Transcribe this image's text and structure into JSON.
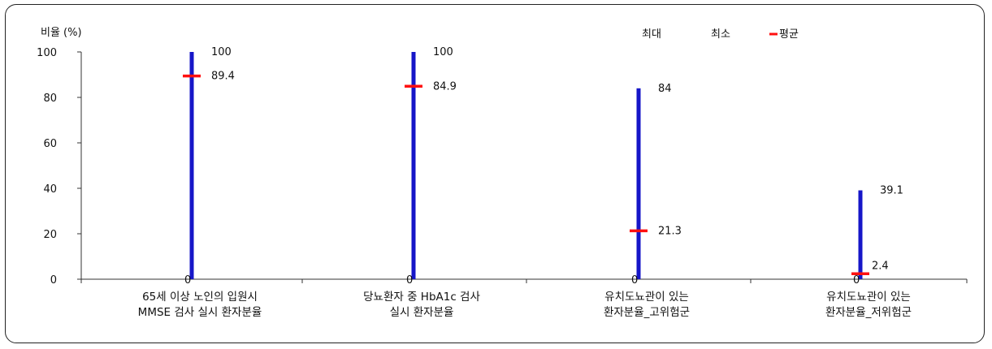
{
  "chart_data": {
    "type": "range",
    "ylabel": "비율 (%)",
    "ylim": [
      0,
      100
    ],
    "yticks": [
      0,
      20,
      40,
      60,
      80,
      100
    ],
    "legend": {
      "max": "최대",
      "min": "최소",
      "mean": "평균",
      "placement": "top-right"
    },
    "colors": {
      "range": "#1616c8",
      "mean": "#ff1010"
    },
    "categories": [
      {
        "lines": [
          "65세 이상 노인의 입원시",
          "MMSE 검사 실시 환자분율"
        ],
        "max": 100,
        "min": 0,
        "mean": 89.4,
        "max_label": "100",
        "min_label": "0",
        "mean_label": "89.4"
      },
      {
        "lines": [
          "당뇨환자 중 HbA1c 검사",
          "실시 환자분율"
        ],
        "max": 100,
        "min": 0,
        "mean": 84.9,
        "max_label": "100",
        "min_label": "0",
        "mean_label": "84.9"
      },
      {
        "lines": [
          "유치도뇨관이 있는",
          "환자분율_고위험군"
        ],
        "max": 84,
        "min": 0,
        "mean": 21.3,
        "max_label": "84",
        "min_label": "0",
        "mean_label": "21.3"
      },
      {
        "lines": [
          "유치도뇨관이 있는",
          "환자분율_저위험군"
        ],
        "max": 39.1,
        "min": 0,
        "mean": 2.4,
        "max_label": "39.1",
        "min_label": "0",
        "mean_label": "2.4"
      }
    ]
  }
}
